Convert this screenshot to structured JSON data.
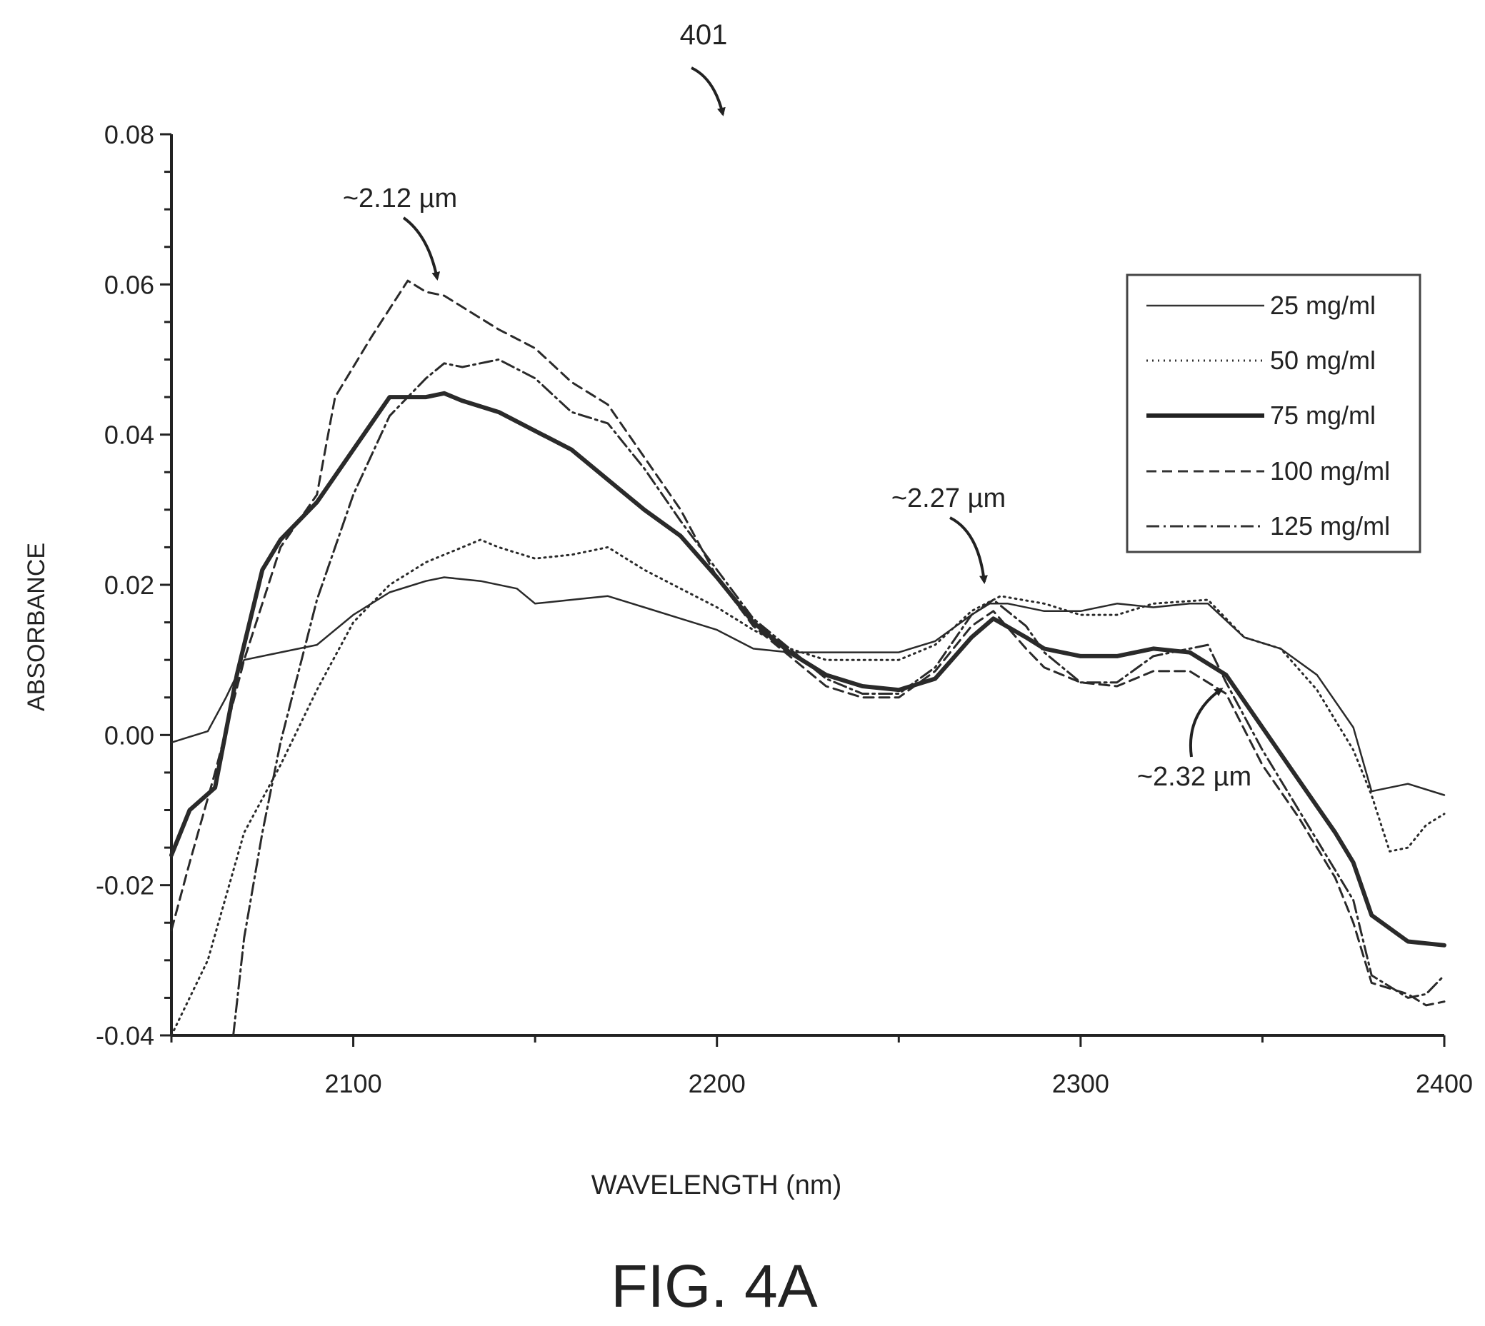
{
  "figure": {
    "ref_label": "401",
    "caption": "FIG. 4A"
  },
  "chart_data": {
    "type": "line",
    "xlabel": "WAVELENGTH (nm)",
    "ylabel": "ABSORBANCE",
    "xlim": [
      2050,
      2400
    ],
    "ylim": [
      -0.04,
      0.08
    ],
    "x_ticks": [
      2100,
      2200,
      2300,
      2400
    ],
    "x_tick_labels": [
      "2100",
      "2200",
      "2300",
      "2400"
    ],
    "y_ticks": [
      -0.04,
      -0.02,
      0.0,
      0.02,
      0.04,
      0.06,
      0.08
    ],
    "y_tick_labels": [
      "-0.04",
      "-0.02",
      "0.00",
      "0.02",
      "0.04",
      "0.06",
      "0.08"
    ],
    "grid": false,
    "legend_position": "top-right",
    "series": [
      {
        "name": "25 mg/ml",
        "style": "solid-thin",
        "points": [
          [
            2050,
            -0.001
          ],
          [
            2060,
            0.0005
          ],
          [
            2065,
            0.005
          ],
          [
            2070,
            0.01
          ],
          [
            2080,
            0.011
          ],
          [
            2090,
            0.012
          ],
          [
            2100,
            0.016
          ],
          [
            2110,
            0.019
          ],
          [
            2120,
            0.0205
          ],
          [
            2125,
            0.021
          ],
          [
            2135,
            0.0205
          ],
          [
            2145,
            0.0195
          ],
          [
            2150,
            0.0175
          ],
          [
            2160,
            0.018
          ],
          [
            2170,
            0.0185
          ],
          [
            2180,
            0.017
          ],
          [
            2190,
            0.0155
          ],
          [
            2200,
            0.014
          ],
          [
            2210,
            0.0115
          ],
          [
            2220,
            0.011
          ],
          [
            2230,
            0.011
          ],
          [
            2240,
            0.011
          ],
          [
            2250,
            0.011
          ],
          [
            2260,
            0.0125
          ],
          [
            2270,
            0.016
          ],
          [
            2275,
            0.0175
          ],
          [
            2280,
            0.0175
          ],
          [
            2290,
            0.0165
          ],
          [
            2300,
            0.0165
          ],
          [
            2310,
            0.0175
          ],
          [
            2320,
            0.017
          ],
          [
            2330,
            0.0175
          ],
          [
            2335,
            0.0175
          ],
          [
            2345,
            0.013
          ],
          [
            2355,
            0.0115
          ],
          [
            2365,
            0.008
          ],
          [
            2375,
            0.001
          ],
          [
            2380,
            -0.0075
          ],
          [
            2390,
            -0.0065
          ],
          [
            2400,
            -0.008
          ]
        ]
      },
      {
        "name": "50 mg/ml",
        "style": "dotted",
        "points": [
          [
            2050,
            -0.04
          ],
          [
            2060,
            -0.03
          ],
          [
            2070,
            -0.013
          ],
          [
            2080,
            -0.004
          ],
          [
            2090,
            0.006
          ],
          [
            2100,
            0.015
          ],
          [
            2110,
            0.02
          ],
          [
            2120,
            0.023
          ],
          [
            2130,
            0.025
          ],
          [
            2135,
            0.026
          ],
          [
            2140,
            0.025
          ],
          [
            2150,
            0.0235
          ],
          [
            2160,
            0.024
          ],
          [
            2170,
            0.025
          ],
          [
            2180,
            0.022
          ],
          [
            2190,
            0.0195
          ],
          [
            2200,
            0.017
          ],
          [
            2210,
            0.014
          ],
          [
            2220,
            0.0115
          ],
          [
            2230,
            0.01
          ],
          [
            2240,
            0.01
          ],
          [
            2250,
            0.01
          ],
          [
            2260,
            0.012
          ],
          [
            2270,
            0.0165
          ],
          [
            2278,
            0.0185
          ],
          [
            2290,
            0.0175
          ],
          [
            2300,
            0.016
          ],
          [
            2310,
            0.016
          ],
          [
            2320,
            0.0175
          ],
          [
            2335,
            0.018
          ],
          [
            2345,
            0.013
          ],
          [
            2355,
            0.0115
          ],
          [
            2365,
            0.006
          ],
          [
            2375,
            -0.002
          ],
          [
            2380,
            -0.008
          ],
          [
            2385,
            -0.0155
          ],
          [
            2390,
            -0.015
          ],
          [
            2395,
            -0.012
          ],
          [
            2400,
            -0.0105
          ]
        ]
      },
      {
        "name": "75 mg/ml",
        "style": "solid-thick",
        "points": [
          [
            2050,
            -0.016
          ],
          [
            2055,
            -0.01
          ],
          [
            2062,
            -0.007
          ],
          [
            2068,
            0.008
          ],
          [
            2075,
            0.022
          ],
          [
            2080,
            0.026
          ],
          [
            2090,
            0.031
          ],
          [
            2100,
            0.038
          ],
          [
            2110,
            0.045
          ],
          [
            2120,
            0.045
          ],
          [
            2125,
            0.0455
          ],
          [
            2130,
            0.0445
          ],
          [
            2140,
            0.043
          ],
          [
            2150,
            0.0405
          ],
          [
            2160,
            0.038
          ],
          [
            2170,
            0.034
          ],
          [
            2180,
            0.03
          ],
          [
            2190,
            0.0265
          ],
          [
            2200,
            0.021
          ],
          [
            2210,
            0.015
          ],
          [
            2220,
            0.011
          ],
          [
            2230,
            0.008
          ],
          [
            2240,
            0.0065
          ],
          [
            2250,
            0.006
          ],
          [
            2260,
            0.0075
          ],
          [
            2270,
            0.013
          ],
          [
            2276,
            0.0155
          ],
          [
            2285,
            0.013
          ],
          [
            2290,
            0.0115
          ],
          [
            2300,
            0.0105
          ],
          [
            2310,
            0.0105
          ],
          [
            2320,
            0.0115
          ],
          [
            2330,
            0.011
          ],
          [
            2340,
            0.008
          ],
          [
            2350,
            0.001
          ],
          [
            2360,
            -0.006
          ],
          [
            2370,
            -0.013
          ],
          [
            2375,
            -0.017
          ],
          [
            2380,
            -0.024
          ],
          [
            2390,
            -0.0275
          ],
          [
            2400,
            -0.028
          ]
        ]
      },
      {
        "name": "100 mg/ml",
        "style": "dashed",
        "points": [
          [
            2050,
            -0.026
          ],
          [
            2055,
            -0.017
          ],
          [
            2062,
            -0.005
          ],
          [
            2070,
            0.01
          ],
          [
            2080,
            0.025
          ],
          [
            2090,
            0.032
          ],
          [
            2095,
            0.045
          ],
          [
            2105,
            0.053
          ],
          [
            2115,
            0.0605
          ],
          [
            2120,
            0.059
          ],
          [
            2125,
            0.0585
          ],
          [
            2135,
            0.0555
          ],
          [
            2140,
            0.054
          ],
          [
            2150,
            0.0515
          ],
          [
            2160,
            0.047
          ],
          [
            2170,
            0.044
          ],
          [
            2180,
            0.037
          ],
          [
            2190,
            0.03
          ],
          [
            2200,
            0.021
          ],
          [
            2210,
            0.0145
          ],
          [
            2220,
            0.0105
          ],
          [
            2230,
            0.0065
          ],
          [
            2240,
            0.005
          ],
          [
            2250,
            0.005
          ],
          [
            2260,
            0.0085
          ],
          [
            2270,
            0.0145
          ],
          [
            2276,
            0.0165
          ],
          [
            2285,
            0.0115
          ],
          [
            2290,
            0.009
          ],
          [
            2300,
            0.007
          ],
          [
            2310,
            0.0065
          ],
          [
            2320,
            0.0085
          ],
          [
            2330,
            0.0085
          ],
          [
            2340,
            0.0055
          ],
          [
            2350,
            -0.004
          ],
          [
            2360,
            -0.011
          ],
          [
            2370,
            -0.019
          ],
          [
            2375,
            -0.025
          ],
          [
            2380,
            -0.033
          ],
          [
            2390,
            -0.0345
          ],
          [
            2395,
            -0.036
          ],
          [
            2400,
            -0.0355
          ]
        ]
      },
      {
        "name": "125 mg/ml",
        "style": "dash-dot",
        "points": [
          [
            2067,
            -0.04
          ],
          [
            2070,
            -0.027
          ],
          [
            2075,
            -0.013
          ],
          [
            2080,
            -0.001
          ],
          [
            2090,
            0.018
          ],
          [
            2100,
            0.032
          ],
          [
            2110,
            0.0425
          ],
          [
            2120,
            0.0475
          ],
          [
            2125,
            0.0495
          ],
          [
            2130,
            0.049
          ],
          [
            2140,
            0.05
          ],
          [
            2150,
            0.0475
          ],
          [
            2160,
            0.043
          ],
          [
            2170,
            0.0415
          ],
          [
            2180,
            0.0355
          ],
          [
            2190,
            0.0285
          ],
          [
            2200,
            0.022
          ],
          [
            2210,
            0.0155
          ],
          [
            2220,
            0.0115
          ],
          [
            2230,
            0.0075
          ],
          [
            2240,
            0.0055
          ],
          [
            2250,
            0.0055
          ],
          [
            2260,
            0.009
          ],
          [
            2270,
            0.016
          ],
          [
            2276,
            0.018
          ],
          [
            2285,
            0.0145
          ],
          [
            2290,
            0.011
          ],
          [
            2300,
            0.007
          ],
          [
            2310,
            0.007
          ],
          [
            2320,
            0.0105
          ],
          [
            2330,
            0.0115
          ],
          [
            2335,
            0.012
          ],
          [
            2340,
            0.007
          ],
          [
            2350,
            -0.002
          ],
          [
            2360,
            -0.01
          ],
          [
            2370,
            -0.018
          ],
          [
            2375,
            -0.022
          ],
          [
            2380,
            -0.032
          ],
          [
            2390,
            -0.035
          ],
          [
            2395,
            -0.0345
          ],
          [
            2400,
            -0.032
          ]
        ]
      }
    ],
    "annotations": [
      {
        "id": "peak-2-12",
        "text": "~2.12 µm"
      },
      {
        "id": "peak-2-27",
        "text": "~2.27 µm"
      },
      {
        "id": "peak-2-32",
        "text": "~2.32 µm"
      }
    ]
  }
}
